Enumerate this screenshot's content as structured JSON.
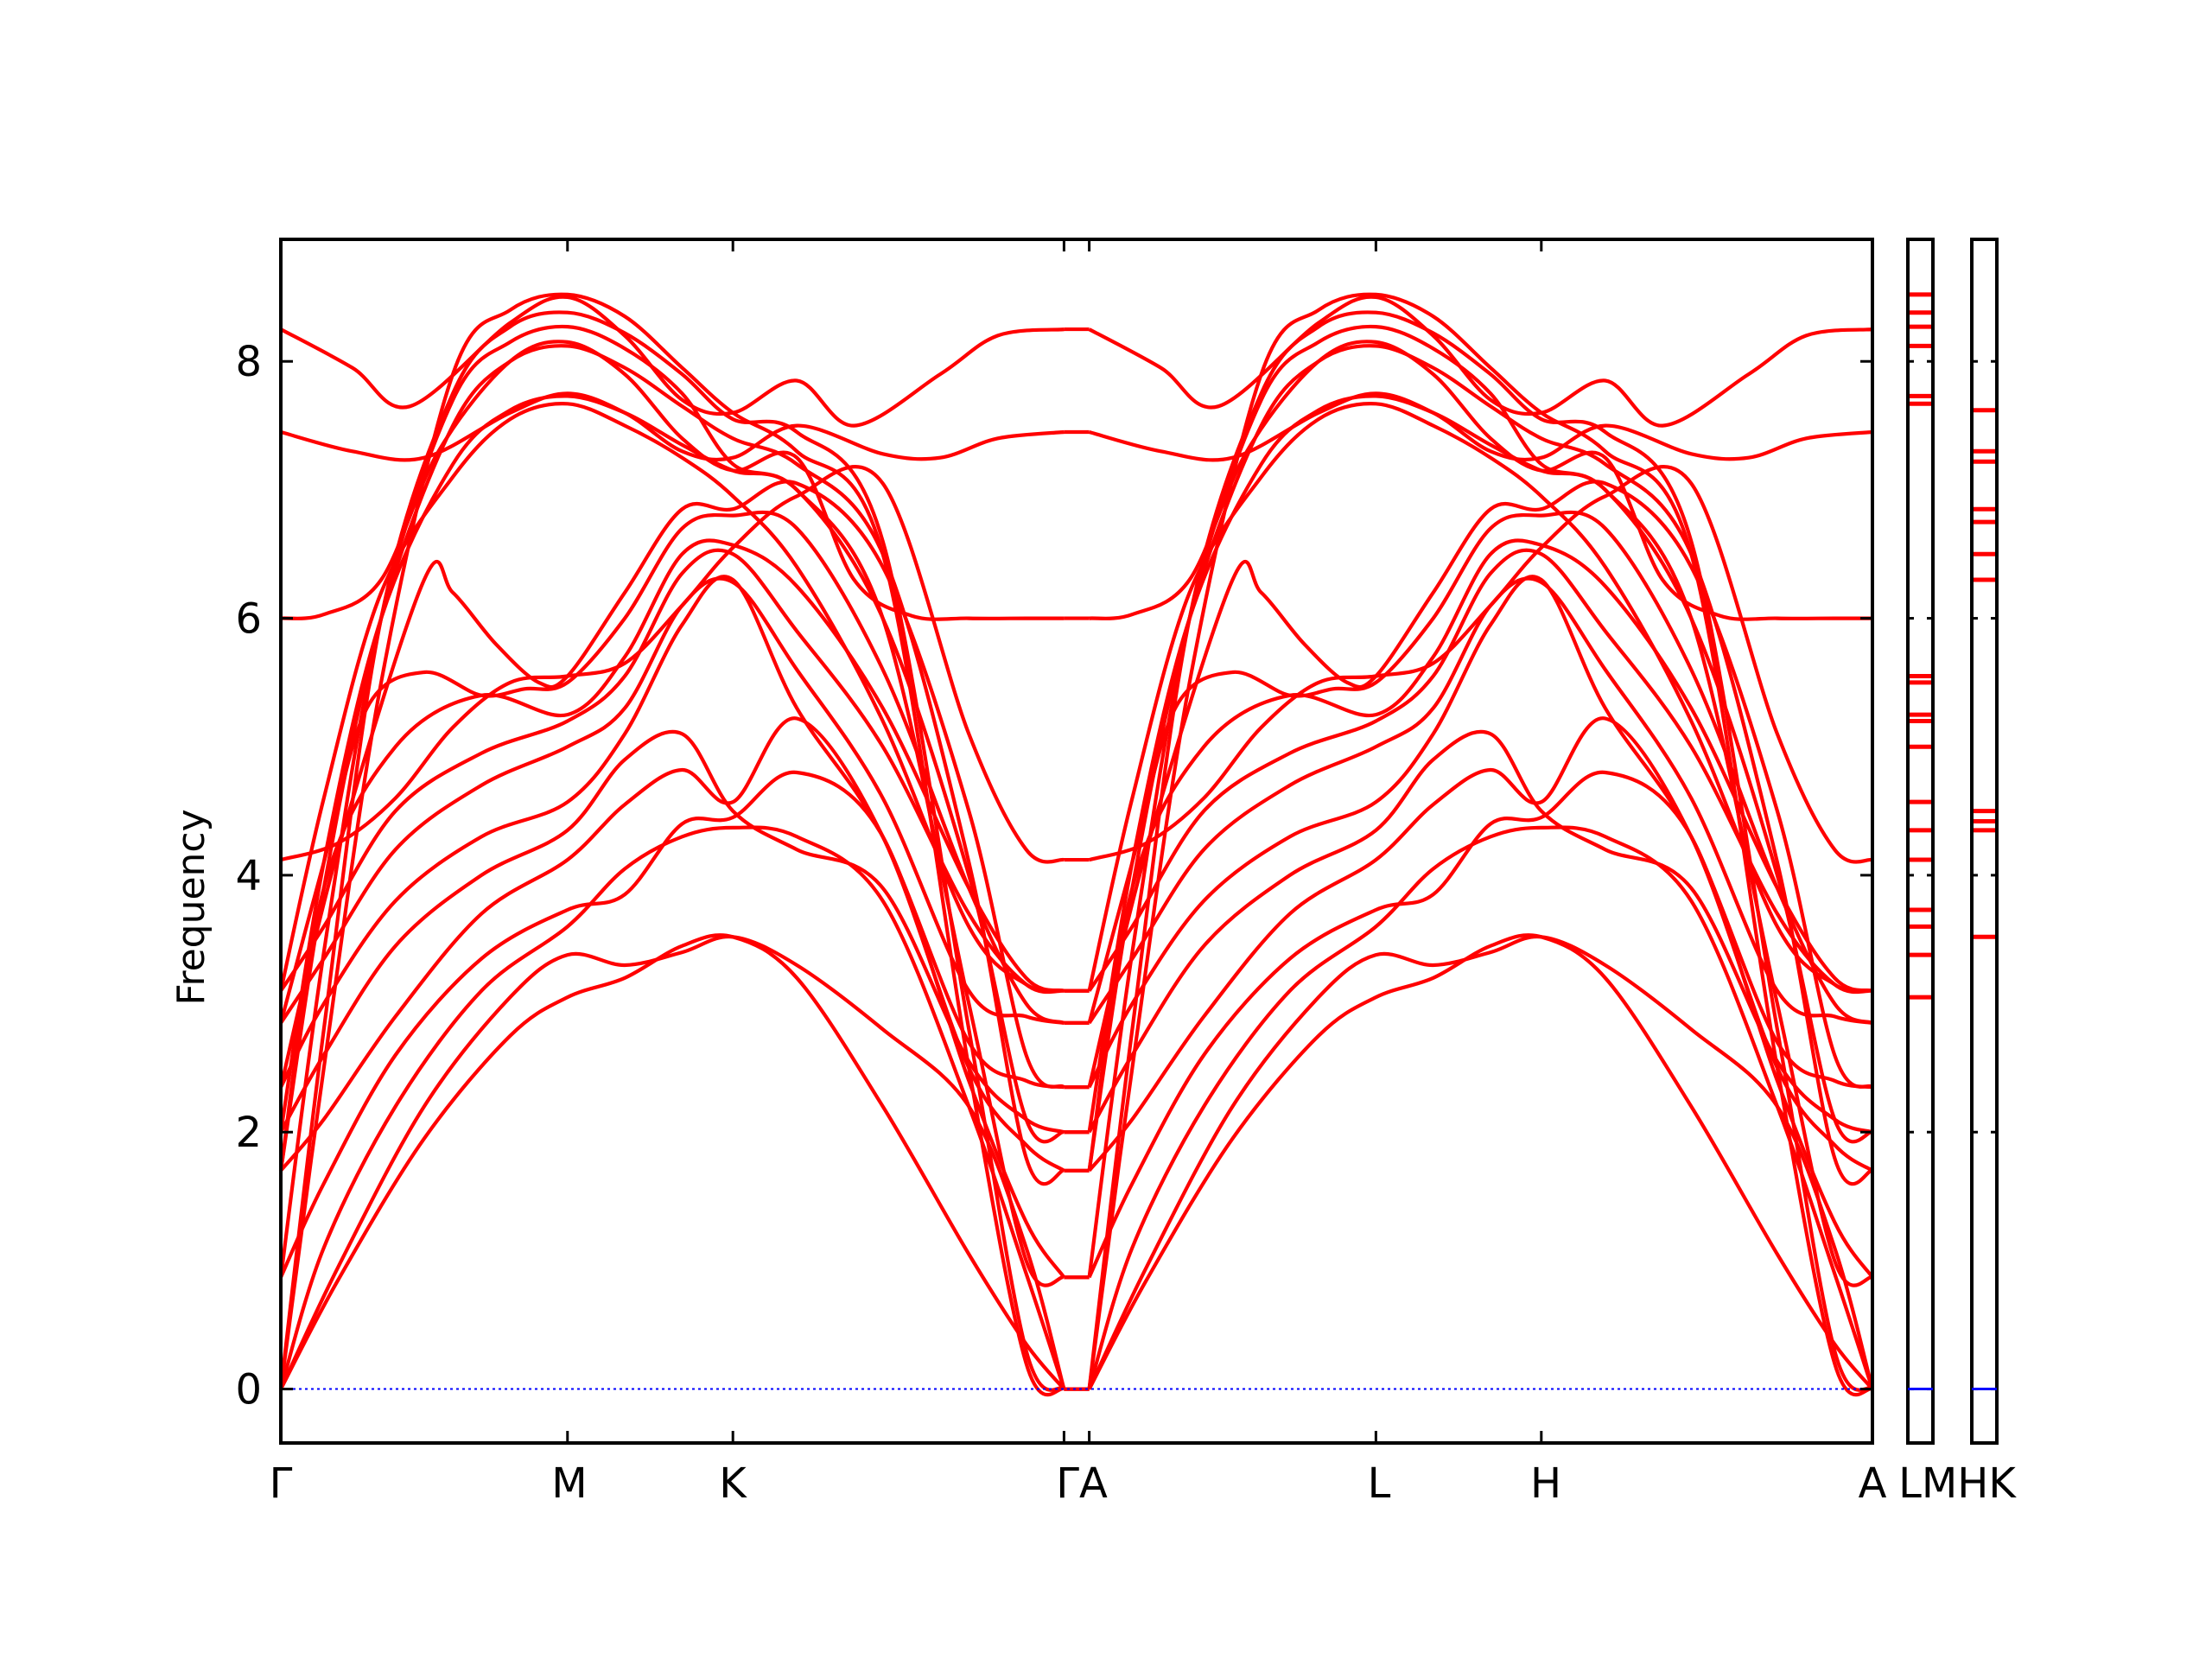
{
  "chart_data": {
    "type": "line",
    "ylabel": "Frequency",
    "y_ticks": [
      "0",
      "2",
      "4",
      "6",
      "8"
    ],
    "ylim": [
      -0.42,
      8.95
    ],
    "k_labels": [
      "Γ",
      "M",
      "K",
      "ΓA",
      "L",
      "H",
      "A",
      "LMHK"
    ],
    "grid": false,
    "legend": "none",
    "color": "#ff0000",
    "zero_line_color": "#0000ff",
    "k_nodes": [
      0,
      1.0,
      1.577,
      2.732,
      2.82,
      3.82,
      4.397,
      5.552
    ],
    "zero_mark_panels": [
      0,
      0
    ],
    "panel_L_M_frequencies": [
      3.05,
      3.38,
      3.6,
      3.73,
      4.12,
      4.35,
      4.57,
      5.0,
      5.2,
      5.25,
      5.5,
      5.55,
      7.67,
      7.73,
      8.12,
      8.27,
      8.38,
      8.52
    ],
    "panel_H_K_frequencies": [
      3.52,
      4.35,
      4.42,
      4.5,
      6.3,
      6.5,
      6.75,
      6.85,
      7.22,
      7.3,
      7.62
    ],
    "series": [
      {
        "name": "",
        "x": [
          0,
          0.2,
          0.5,
          0.8,
          1.0,
          1.2,
          1.4,
          1.577,
          1.8,
          2.1,
          2.4,
          2.6,
          2.732
        ],
        "y": [
          0.0,
          0.85,
          1.95,
          2.75,
          3.05,
          3.2,
          3.45,
          3.52,
          3.2,
          2.2,
          1.05,
          0.35,
          0.0
        ]
      },
      {
        "name": "",
        "x": [
          0,
          0.2,
          0.5,
          0.8,
          1.0,
          1.2,
          1.4,
          1.577,
          1.8,
          2.1,
          2.4,
          2.6,
          2.732
        ],
        "y": [
          0.0,
          0.95,
          2.2,
          3.05,
          3.38,
          3.3,
          3.4,
          3.52,
          3.3,
          2.8,
          2.2,
          1.1,
          0.0
        ]
      },
      {
        "name": "",
        "x": [
          0,
          0.15,
          0.4,
          0.7,
          1.0,
          1.2,
          1.4,
          1.577,
          1.8,
          2.1,
          2.4,
          2.6,
          2.732
        ],
        "y": [
          0.0,
          1.1,
          2.2,
          3.1,
          3.6,
          4.05,
          4.3,
          4.37,
          4.3,
          3.8,
          2.2,
          0.9,
          0.0
        ]
      },
      {
        "name": "",
        "x": [
          0,
          0.15,
          0.4,
          0.7,
          1.0,
          1.2,
          1.4,
          1.577,
          1.8,
          2.1,
          2.4,
          2.6,
          2.732
        ],
        "y": [
          0.87,
          1.6,
          2.6,
          3.35,
          3.73,
          3.85,
          4.4,
          4.45,
          4.8,
          4.3,
          2.4,
          1.3,
          0.87
        ]
      },
      {
        "name": "",
        "x": [
          0,
          0.15,
          0.4,
          0.7,
          1.0,
          1.2,
          1.4,
          1.577,
          1.8,
          2.1,
          2.4,
          2.6,
          2.732
        ],
        "y": [
          1.7,
          2.1,
          2.9,
          3.7,
          4.12,
          4.55,
          4.82,
          4.57,
          5.22,
          4.3,
          2.5,
          1.9,
          1.7
        ]
      },
      {
        "name": "",
        "x": [
          0,
          0.15,
          0.4,
          0.7,
          1.0,
          1.2,
          1.4,
          1.577,
          1.8,
          2.1,
          2.4,
          2.6,
          2.732
        ],
        "y": [
          2.0,
          2.6,
          3.45,
          4.0,
          4.35,
          4.9,
          5.1,
          4.5,
          4.2,
          3.9,
          2.55,
          2.1,
          2.0
        ]
      },
      {
        "name": "",
        "x": [
          0,
          0.15,
          0.4,
          0.7,
          1.0,
          1.2,
          1.4,
          1.577,
          1.8,
          2.1,
          2.4,
          2.6,
          2.732
        ],
        "y": [
          2.35,
          3.0,
          3.8,
          4.3,
          4.57,
          5.1,
          5.95,
          6.3,
          5.3,
          4.3,
          2.7,
          2.4,
          2.35
        ]
      },
      {
        "name": "",
        "x": [
          0,
          0.15,
          0.4,
          0.7,
          1.0,
          1.2,
          1.4,
          1.577,
          1.8,
          2.1,
          2.4,
          2.6,
          2.732
        ],
        "y": [
          2.85,
          3.35,
          4.2,
          4.7,
          5.0,
          5.3,
          6.1,
          6.28,
          5.6,
          4.6,
          3.1,
          2.9,
          2.85
        ]
      },
      {
        "name": "",
        "x": [
          0,
          0.15,
          0.4,
          0.7,
          1.0,
          1.2,
          1.4,
          1.577,
          1.8,
          2.1,
          2.4,
          2.6,
          2.732
        ],
        "y": [
          3.1,
          3.6,
          4.5,
          4.95,
          5.2,
          5.55,
          6.35,
          6.5,
          5.9,
          5.0,
          3.7,
          3.15,
          3.1
        ]
      },
      {
        "name": "",
        "x": [
          0,
          0.15,
          0.4,
          0.7,
          1.0,
          1.2,
          1.4,
          1.577,
          1.8,
          2.1,
          2.4,
          2.6,
          2.732
        ],
        "y": [
          1.7,
          3.9,
          5.0,
          5.4,
          5.25,
          5.7,
          6.5,
          6.57,
          6.25,
          5.3,
          3.9,
          3.2,
          3.1
        ]
      },
      {
        "name": "",
        "x": [
          0,
          0.15,
          0.3,
          0.5,
          0.7,
          0.85,
          1.0,
          1.2,
          1.4,
          1.577,
          1.8,
          2.1,
          2.4,
          2.6,
          2.732
        ],
        "y": [
          2.85,
          4.1,
          5.3,
          5.58,
          5.4,
          5.45,
          5.5,
          6.0,
          6.7,
          6.8,
          6.7,
          5.6,
          3.9,
          3.0,
          2.85
        ]
      },
      {
        "name": "",
        "x": [
          0,
          0.2,
          0.5,
          0.6,
          0.75,
          0.9,
          1.0,
          1.2,
          1.4,
          1.577,
          1.8,
          2.1,
          2.4,
          2.6,
          2.732
        ],
        "y": [
          2.35,
          4.2,
          6.3,
          6.2,
          5.8,
          5.5,
          5.55,
          6.2,
          6.85,
          6.85,
          7.05,
          6.4,
          4.5,
          2.6,
          2.35
        ]
      },
      {
        "name": "",
        "x": [
          0,
          0.15,
          0.35,
          0.6,
          0.8,
          1.0,
          1.2,
          1.4,
          1.577,
          1.8,
          2.1,
          2.4,
          2.6,
          2.732
        ],
        "y": [
          3.1,
          4.6,
          6.2,
          7.1,
          7.55,
          7.67,
          7.5,
          7.25,
          6.95,
          6.4,
          5.2,
          3.6,
          3.15,
          3.1
        ]
      },
      {
        "name": "",
        "x": [
          0,
          0.15,
          0.35,
          0.6,
          0.8,
          1.0,
          1.2,
          1.4,
          1.577,
          1.8,
          2.1,
          2.4,
          2.6,
          2.732
        ],
        "y": [
          2.0,
          4.1,
          6.0,
          7.2,
          7.62,
          7.73,
          7.6,
          7.35,
          7.15,
          7.0,
          6.0,
          4.0,
          2.1,
          2.0
        ]
      },
      {
        "name": "",
        "x": [
          0,
          0.15,
          0.35,
          0.6,
          0.8,
          1.0,
          1.2,
          1.4,
          1.577,
          1.8,
          2.1,
          2.4,
          2.6,
          2.732
        ],
        "y": [
          1.7,
          3.9,
          6.0,
          7.5,
          8.0,
          8.12,
          7.95,
          7.65,
          7.4,
          7.2,
          6.5,
          4.1,
          1.8,
          1.7
        ]
      },
      {
        "name": "",
        "x": [
          0,
          0.15,
          0.35,
          0.6,
          0.8,
          1.0,
          1.2,
          1.4,
          1.577,
          1.8,
          2.1,
          2.4,
          2.6,
          2.732
        ],
        "y": [
          0.87,
          3.4,
          6.0,
          7.7,
          8.15,
          8.27,
          8.1,
          7.75,
          7.2,
          7.0,
          6.0,
          3.0,
          1.0,
          0.87
        ]
      },
      {
        "name": "",
        "x": [
          0,
          0.15,
          0.35,
          0.6,
          0.8,
          1.0,
          1.2,
          1.4,
          1.577,
          1.8,
          2.1,
          2.4,
          2.6,
          2.732
        ],
        "y": [
          0.0,
          2.8,
          6.0,
          7.75,
          8.27,
          8.38,
          8.22,
          7.9,
          7.55,
          7.45,
          6.6,
          2.8,
          0.3,
          0.0
        ]
      },
      {
        "name": "",
        "x": [
          0,
          0.15,
          0.35,
          0.6,
          0.8,
          1.0,
          1.2,
          1.4,
          1.577,
          1.8,
          2.1,
          2.4,
          2.6,
          2.732
        ],
        "y": [
          0.0,
          2.5,
          5.5,
          7.9,
          8.4,
          8.52,
          8.35,
          7.95,
          7.6,
          7.3,
          6.5,
          2.5,
          0.2,
          0.0
        ]
      },
      {
        "name": "",
        "x": [
          0,
          0.2,
          0.4,
          0.6,
          0.8,
          1.0,
          1.2,
          1.4,
          1.577,
          1.8,
          2.1,
          2.4,
          2.6,
          2.732
        ],
        "y": [
          4.12,
          4.25,
          4.6,
          5.15,
          5.5,
          5.55,
          5.65,
          6.1,
          6.55,
          6.95,
          7.05,
          5.1,
          4.2,
          4.12
        ]
      },
      {
        "name": "",
        "x": [
          0,
          0.15,
          0.35,
          0.55,
          0.8,
          1.0,
          1.2,
          1.4,
          1.577,
          1.8,
          2.0,
          2.2,
          2.4,
          2.6,
          2.732
        ],
        "y": [
          6.0,
          6.03,
          6.3,
          7.3,
          8.0,
          8.15,
          7.9,
          7.4,
          7.15,
          7.25,
          6.3,
          6.02,
          6.0,
          6.0,
          6.0
        ]
      },
      {
        "name": "",
        "x": [
          0,
          0.25,
          0.5,
          0.8,
          1.0,
          1.2,
          1.4,
          1.577,
          1.8,
          2.1,
          2.3,
          2.5,
          2.732
        ],
        "y": [
          7.45,
          7.3,
          7.25,
          7.6,
          7.75,
          7.6,
          7.3,
          7.25,
          7.5,
          7.28,
          7.25,
          7.4,
          7.45
        ]
      },
      {
        "name": "",
        "x": [
          0,
          0.25,
          0.45,
          0.8,
          1.0,
          1.2,
          1.4,
          1.577,
          1.8,
          2.0,
          2.3,
          2.5,
          2.732
        ],
        "y": [
          8.25,
          7.95,
          7.65,
          8.3,
          8.5,
          8.2,
          7.7,
          7.6,
          7.85,
          7.5,
          7.9,
          8.2,
          8.25
        ]
      }
    ]
  }
}
